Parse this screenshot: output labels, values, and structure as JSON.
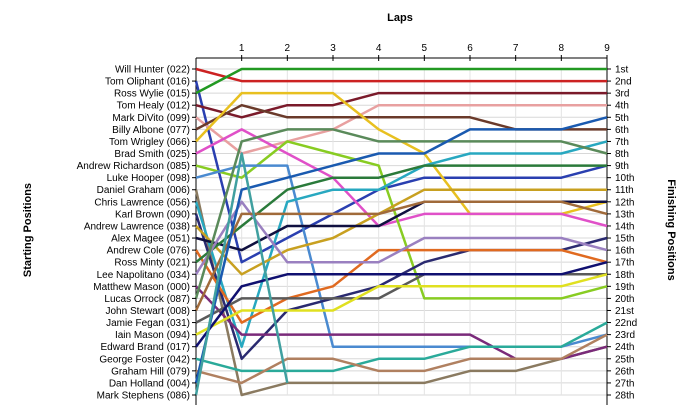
{
  "chart_data": {
    "type": "line",
    "title": "",
    "xlabel": "Laps",
    "ylabel": "Starting Positions",
    "y2label": "Finishing Positions",
    "x": [
      0,
      1,
      2,
      3,
      4,
      5,
      6,
      7,
      8,
      9
    ],
    "x_tick_labels": [
      "1",
      "2",
      "3",
      "4",
      "5",
      "6",
      "7",
      "8",
      "9"
    ],
    "ylim": [
      1,
      28
    ],
    "finishing_labels": [
      "1st",
      "2nd",
      "3rd",
      "4th",
      "5th",
      "6th",
      "7th",
      "8th",
      "9th",
      "10th",
      "11th",
      "12th",
      "13th",
      "14th",
      "15th",
      "16th",
      "17th",
      "18th",
      "19th",
      "20th",
      "21st",
      "22nd",
      "23rd",
      "24th",
      "25th",
      "26th",
      "27th",
      "28th"
    ],
    "grid": true,
    "series": [
      {
        "name": "Will Hunter (022)",
        "color": "#cc2222",
        "values": [
          1,
          2,
          2,
          2,
          2,
          2,
          2,
          2,
          2,
          2
        ]
      },
      {
        "name": "Tom Oliphant (016)",
        "color": "#2a3fb0",
        "values": [
          2,
          17,
          15,
          13,
          11,
          10,
          10,
          10,
          10,
          9
        ]
      },
      {
        "name": "Ross Wylie (015)",
        "color": "#229922",
        "values": [
          3,
          1,
          1,
          1,
          1,
          1,
          1,
          1,
          1,
          1
        ]
      },
      {
        "name": "Tom Healy (012)",
        "color": "#7a1a2a",
        "values": [
          4,
          5,
          4,
          4,
          3,
          3,
          3,
          3,
          3,
          3
        ]
      },
      {
        "name": "Mark DiVito (099)",
        "color": "#e8a0a0",
        "values": [
          5,
          8,
          7,
          6,
          4,
          4,
          4,
          4,
          4,
          4
        ]
      },
      {
        "name": "Billy Albone (077)",
        "color": "#6a3a2a",
        "values": [
          6,
          4,
          5,
          5,
          5,
          5,
          5,
          6,
          6,
          6
        ]
      },
      {
        "name": "Tom Wrigley (066)",
        "color": "#e8c020",
        "values": [
          7,
          3,
          3,
          3,
          6,
          8,
          13,
          13,
          13,
          12
        ]
      },
      {
        "name": "Brad Smith (025)",
        "color": "#e050c8",
        "values": [
          8,
          6,
          8,
          10,
          14,
          13,
          13,
          13,
          13,
          14
        ]
      },
      {
        "name": "Andrew Richardson (085)",
        "color": "#88cc22",
        "values": [
          9,
          10,
          7,
          8,
          9,
          20,
          20,
          20,
          20,
          19
        ]
      },
      {
        "name": "Luke Hooper (098)",
        "color": "#4a8ad0",
        "values": [
          10,
          9,
          9,
          24,
          24,
          24,
          24,
          24,
          24,
          23
        ]
      },
      {
        "name": "Daniel Graham (006)",
        "color": "#8a7a60",
        "values": [
          11,
          28,
          27,
          27,
          27,
          27,
          26,
          26,
          25,
          24
        ]
      },
      {
        "name": "Chris Lawrence (056)",
        "color": "#28a8c0",
        "values": [
          12,
          24,
          12,
          11,
          11,
          9,
          8,
          8,
          8,
          7
        ]
      },
      {
        "name": "Karl Brown (090)",
        "color": "#2a2a70",
        "values": [
          13,
          25,
          21,
          20,
          19,
          17,
          16,
          16,
          16,
          15
        ]
      },
      {
        "name": "Andrew Lawrence (038)",
        "color": "#c8a020",
        "values": [
          14,
          18,
          16,
          15,
          13,
          11,
          11,
          11,
          11,
          11
        ]
      },
      {
        "name": "Alex Magee (051)",
        "color": "#101040",
        "values": [
          15,
          16,
          14,
          14,
          14,
          12,
          12,
          12,
          12,
          12
        ]
      },
      {
        "name": "Andrew Cole (076)",
        "color": "#e06a20",
        "values": [
          16,
          22,
          20,
          19,
          16,
          16,
          16,
          16,
          16,
          17
        ]
      },
      {
        "name": "Ross Minty (021)",
        "color": "#2a7a3a",
        "values": [
          17,
          14,
          11,
          10,
          10,
          9,
          9,
          9,
          9,
          9
        ]
      },
      {
        "name": "Lee Napolitano (034)",
        "color": "#9a80c0",
        "values": [
          18,
          12,
          17,
          17,
          17,
          15,
          15,
          15,
          15,
          16
        ]
      },
      {
        "name": "Matthew Mason (000)",
        "color": "#7a2a7a",
        "values": [
          19,
          23,
          23,
          23,
          23,
          23,
          23,
          25,
          25,
          24
        ]
      },
      {
        "name": "Lucas Orrock (087)",
        "color": "#5a8a5a",
        "values": [
          20,
          7,
          6,
          6,
          7,
          7,
          7,
          7,
          7,
          8
        ]
      },
      {
        "name": "John Stewart (008)",
        "color": "#a06a3a",
        "values": [
          21,
          13,
          13,
          13,
          13,
          12,
          12,
          12,
          12,
          13
        ]
      },
      {
        "name": "Jamie Fegan (031)",
        "color": "#5a5a5a",
        "values": [
          22,
          20,
          20,
          20,
          20,
          18,
          18,
          18,
          18,
          18
        ]
      },
      {
        "name": "Iain Mason (094)",
        "color": "#e0e020",
        "values": [
          23,
          21,
          21,
          21,
          19,
          19,
          19,
          19,
          19,
          18
        ]
      },
      {
        "name": "Edward Brand (017)",
        "color": "#101070",
        "values": [
          24,
          19,
          18,
          18,
          18,
          18,
          18,
          18,
          18,
          17
        ]
      },
      {
        "name": "George Foster (042)",
        "color": "#2aaa9a",
        "values": [
          25,
          26,
          26,
          26,
          25,
          25,
          24,
          24,
          24,
          22
        ]
      },
      {
        "name": "Graham Hill (079)",
        "color": "#b08060",
        "values": [
          26,
          27,
          25,
          25,
          26,
          26,
          25,
          25,
          25,
          23
        ]
      },
      {
        "name": "Dan Holland (004)",
        "color": "#1a5ab0",
        "values": [
          27,
          11,
          10,
          9,
          8,
          8,
          6,
          6,
          6,
          5
        ]
      },
      {
        "name": "Mark Stephens (086)",
        "color": "#40a0a0",
        "values": [
          28,
          8,
          27,
          null,
          null,
          null,
          null,
          null,
          null,
          null
        ]
      }
    ]
  }
}
